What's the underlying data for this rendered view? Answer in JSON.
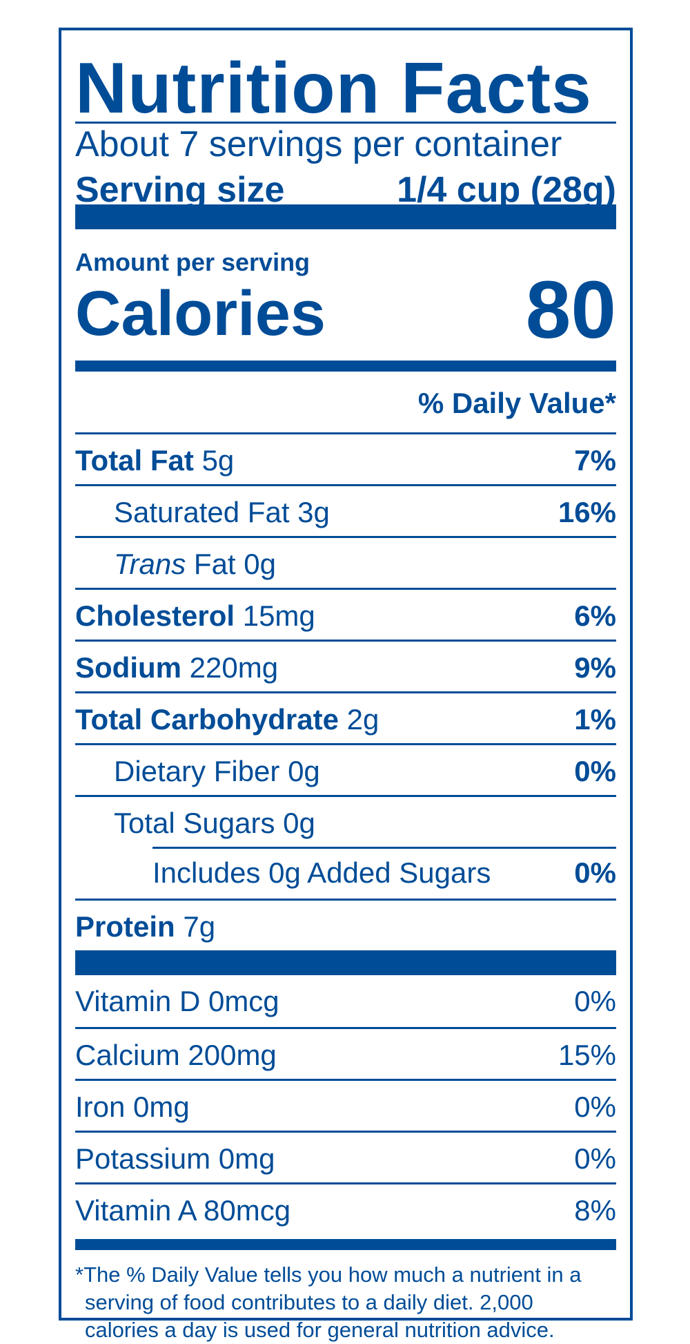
{
  "label": {
    "title": "Nutrition Facts",
    "servings_per_container": "About 7 servings per container",
    "serving_size_label": "Serving size",
    "serving_size_value": "1/4 cup (28g)",
    "amount_per_serving": "Amount per serving",
    "calories_label": "Calories",
    "calories_value": "80",
    "daily_value_header": "% Daily Value*"
  },
  "nutrients": [
    {
      "name": "Total Fat",
      "amount": "5g",
      "dv": "7%"
    },
    {
      "name": "Saturated Fat",
      "amount": "3g",
      "dv": "16%"
    },
    {
      "name_italic": "Trans",
      "name": "Fat",
      "amount": "0g",
      "dv": ""
    },
    {
      "name": "Cholesterol",
      "amount": "15mg",
      "dv": "6%"
    },
    {
      "name": "Sodium",
      "amount": "220mg",
      "dv": "9%"
    },
    {
      "name": "Total Carbohydrate",
      "amount": "2g",
      "dv": "1%"
    },
    {
      "name": "Dietary Fiber",
      "amount": "0g",
      "dv": "0%"
    },
    {
      "name": "Total Sugars",
      "amount": "0g",
      "dv": ""
    },
    {
      "name": "Includes 0g Added Sugars",
      "amount": "",
      "dv": "0%"
    },
    {
      "name": "Protein",
      "amount": "7g",
      "dv": ""
    }
  ],
  "vitamins": [
    {
      "text": "Vitamin D 0mcg",
      "dv": "0%"
    },
    {
      "text": "Calcium 200mg",
      "dv": "15%"
    },
    {
      "text": "Iron 0mg",
      "dv": "0%"
    },
    {
      "text": "Potassium 0mg",
      "dv": "0%"
    },
    {
      "text": "Vitamin A 80mcg",
      "dv": "8%"
    }
  ],
  "footnote": {
    "line1": "*The % Daily Value tells you how much a nutrient in a",
    "line2": "serving of food contributes to a daily diet. 2,000",
    "line3": "calories a day is used for general nutrition advice."
  },
  "colors": {
    "ink": "#004c97",
    "background": "#ffffff"
  }
}
